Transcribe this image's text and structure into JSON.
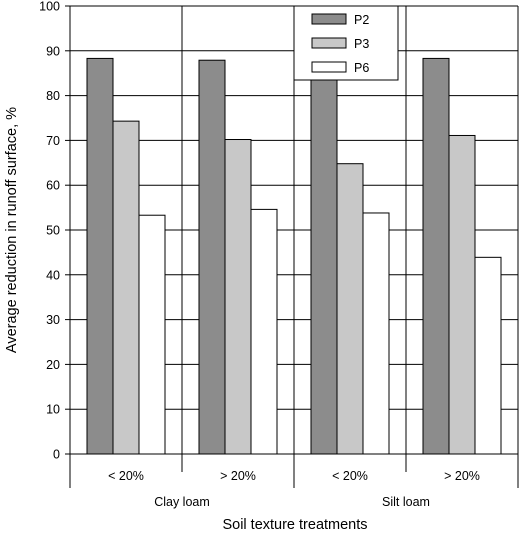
{
  "chart_data": {
    "type": "bar",
    "title": "",
    "xlabel": "Soil texture treatments",
    "ylabel": "Average reduction in runoff surface, %",
    "ylim": [
      0,
      100
    ],
    "yticks": [
      0,
      10,
      20,
      30,
      40,
      50,
      60,
      70,
      80,
      90,
      100
    ],
    "groups": [
      "Clay loam",
      "Silt loam"
    ],
    "categories": [
      "< 20%",
      "> 20%",
      "< 20%",
      "> 20%"
    ],
    "series": [
      {
        "name": "P2",
        "color": "#8c8c8c",
        "values": [
          88.3,
          87.9,
          85.4,
          88.3
        ]
      },
      {
        "name": "P3",
        "color": "#c8c8c8",
        "values": [
          74.3,
          70.2,
          64.8,
          71.1
        ]
      },
      {
        "name": "P6",
        "color": "#ffffff",
        "values": [
          53.3,
          54.6,
          53.8,
          43.9
        ]
      }
    ],
    "grid": "horizontal and vertical",
    "legend": "top-center"
  }
}
